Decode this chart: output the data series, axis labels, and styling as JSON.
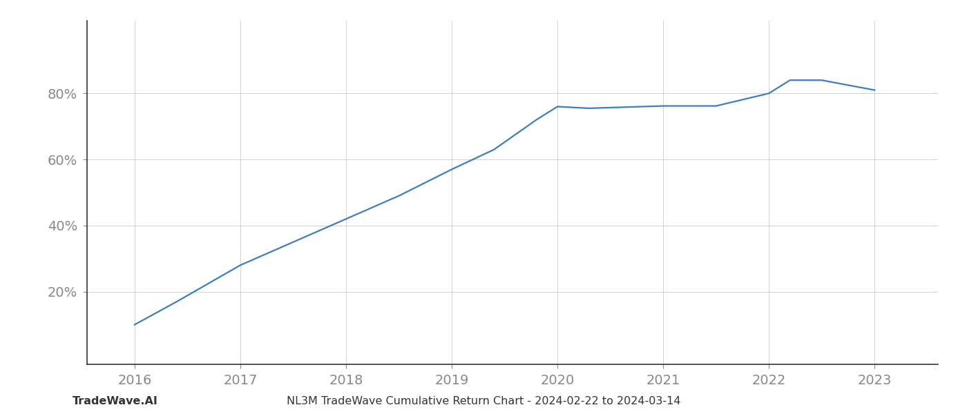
{
  "x_values": [
    2016.0,
    2016.4,
    2017.0,
    2017.5,
    2018.0,
    2018.5,
    2019.0,
    2019.4,
    2019.8,
    2020.0,
    2020.3,
    2021.0,
    2021.5,
    2022.0,
    2022.2,
    2022.5,
    2023.0
  ],
  "y_values": [
    0.1,
    0.17,
    0.28,
    0.35,
    0.42,
    0.49,
    0.57,
    0.63,
    0.72,
    0.76,
    0.755,
    0.762,
    0.762,
    0.8,
    0.84,
    0.84,
    0.81
  ],
  "line_color": "#3a7ebf",
  "line_width": 1.6,
  "background_color": "#ffffff",
  "grid_color": "#d0d0d0",
  "grid_linewidth": 0.7,
  "xlim": [
    2015.55,
    2023.6
  ],
  "ylim": [
    -0.02,
    1.02
  ],
  "yticks": [
    0.2,
    0.4,
    0.6,
    0.8
  ],
  "ytick_labels": [
    "20%",
    "40%",
    "60%",
    "80%"
  ],
  "xticks": [
    2016,
    2017,
    2018,
    2019,
    2020,
    2021,
    2022,
    2023
  ],
  "xtick_labels": [
    "2016",
    "2017",
    "2018",
    "2019",
    "2020",
    "2021",
    "2022",
    "2023"
  ],
  "bottom_left_text": "TradeWave.AI",
  "bottom_center_text": "NL3M TradeWave Cumulative Return Chart - 2024-02-22 to 2024-03-14",
  "tick_fontsize": 14,
  "footer_fontsize": 11.5,
  "left_spine_color": "#333333",
  "bottom_spine_color": "#333333",
  "tick_color": "#888888",
  "ytick_color": "#888888"
}
